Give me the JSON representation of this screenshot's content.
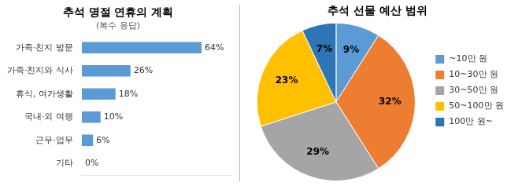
{
  "chart_data": [
    {
      "type": "bar",
      "orientation": "horizontal",
      "title": "추석 명절 연휴의 계획",
      "subtitle": "(복수 응답)",
      "categories": [
        "가족·친지 방문",
        "가족·친지와 식사",
        "휴식, 여가생활",
        "국내·외 여행",
        "근무·업무",
        "기타"
      ],
      "values": [
        64,
        26,
        18,
        10,
        6,
        0
      ],
      "value_labels": [
        "64%",
        "26%",
        "18%",
        "10%",
        "6%",
        "0%"
      ],
      "color": "#5B9BD5",
      "xlim": [
        0,
        80
      ],
      "grid": false,
      "data_labels": true,
      "tick_labels": "y"
    },
    {
      "type": "pie",
      "title": "추석 선물 예산 범위",
      "categories": [
        "~10만 원",
        "10~30만 원",
        "30~50만 원",
        "50~100만 원",
        "100만 원~"
      ],
      "values": [
        9,
        32,
        29,
        23,
        7
      ],
      "value_labels": [
        "9%",
        "32%",
        "29%",
        "23%",
        "7%"
      ],
      "colors": [
        "#5B9BD5",
        "#ED7D31",
        "#A5A5A5",
        "#FFC000",
        "#2E75B6"
      ],
      "legend": "right",
      "data_labels": true
    }
  ]
}
